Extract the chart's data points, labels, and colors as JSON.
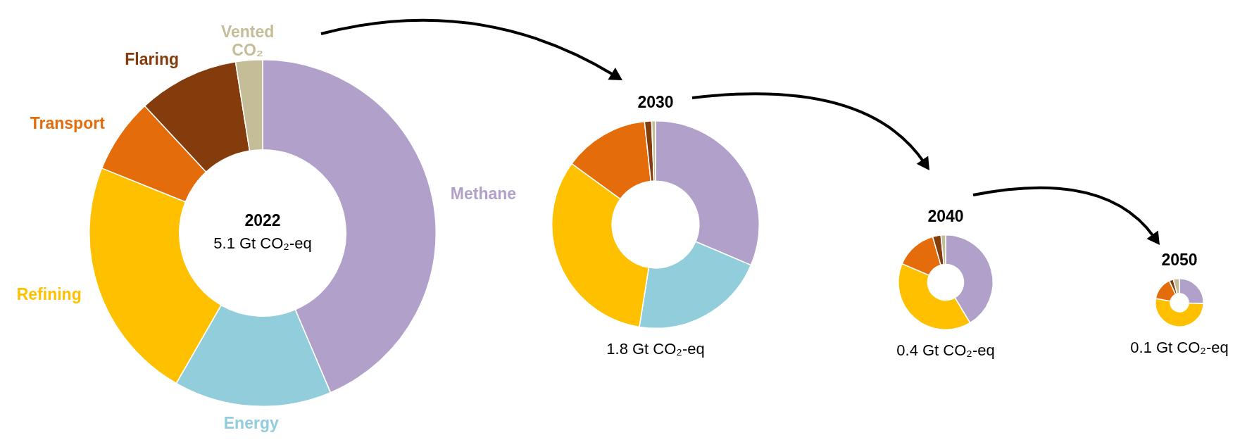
{
  "chart_data": [
    {
      "type": "donut",
      "title": "2022",
      "subtitle": "5.1 Gt CO₂-eq",
      "categories": [
        "Methane",
        "Energy",
        "Refining",
        "Transport",
        "Flaring",
        "Vented CO₂"
      ],
      "values": [
        43.6,
        14.7,
        22.8,
        7,
        9.4,
        2.5
      ],
      "colors": [
        "#b0a0ca",
        "#92cddc",
        "#ffc000",
        "#e46c0a",
        "#843c0c",
        "#c4bd97"
      ]
    },
    {
      "type": "donut",
      "title": "2030",
      "subtitle": "1.8 Gt CO₂-eq",
      "categories": [
        null,
        null,
        null,
        null,
        null,
        null
      ],
      "values": [
        31.4,
        21.1,
        32.5,
        13.3,
        1.1,
        0.6
      ],
      "colors": [
        "#b0a0ca",
        "#92cddc",
        "#ffc000",
        "#e46c0a",
        "#843c0c",
        "#c4bd97"
      ]
    },
    {
      "type": "donut",
      "title": "2040",
      "subtitle": "0.4 Gt CO₂-eq",
      "categories": [
        null,
        null,
        null,
        null,
        null,
        null
      ],
      "values": [
        41.4,
        0,
        40,
        14.2,
        2.8,
        1.6
      ],
      "colors": [
        "#b0a0ca",
        "#92cddc",
        "#ffc000",
        "#e46c0a",
        "#843c0c",
        "#c4bd97"
      ]
    },
    {
      "type": "donut",
      "title": "2050",
      "subtitle": "0.1 Gt CO₂-eq",
      "categories": [
        null,
        null,
        null,
        null,
        null,
        null
      ],
      "values": [
        25.6,
        0,
        52.2,
        15.3,
        2.8,
        4.1
      ],
      "colors": [
        "#b0a0ca",
        "#92cddc",
        "#ffc000",
        "#e46c0a",
        "#843c0c",
        "#c4bd97"
      ]
    }
  ]
}
